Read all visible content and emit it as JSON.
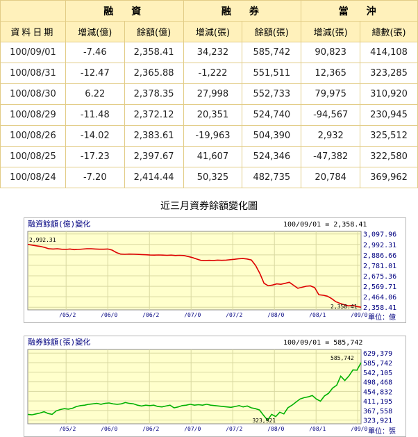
{
  "table": {
    "groups": [
      "",
      "融　資",
      "融　券",
      "當　沖"
    ],
    "headers": [
      "資料日期",
      "增減(億)",
      "餘額(億)",
      "增減(張)",
      "餘額(張)",
      "增減(張)",
      "總數(張)"
    ],
    "rows": [
      [
        "100/09/01",
        "-7.46",
        "2,358.41",
        "34,232",
        "585,742",
        "90,823",
        "414,108"
      ],
      [
        "100/08/31",
        "-12.47",
        "2,365.88",
        "-1,222",
        "551,511",
        "12,365",
        "323,285"
      ],
      [
        "100/08/30",
        "6.22",
        "2,378.35",
        "27,998",
        "552,733",
        "79,975",
        "310,920"
      ],
      [
        "100/08/29",
        "-11.48",
        "2,372.12",
        "20,351",
        "524,740",
        "-94,567",
        "230,945"
      ],
      [
        "100/08/26",
        "-14.02",
        "2,383.61",
        "-19,963",
        "504,390",
        "2,932",
        "325,512"
      ],
      [
        "100/08/25",
        "-17.23",
        "2,397.67",
        "41,607",
        "524,346",
        "-47,382",
        "322,580"
      ],
      [
        "100/08/24",
        "-7.20",
        "2,414.44",
        "50,325",
        "482,735",
        "20,784",
        "369,962"
      ]
    ]
  },
  "caption": "近三月資券餘額變化圖",
  "chart_data": [
    {
      "type": "line",
      "title": "融資餘額(億)變化",
      "current": "100/09/01 = 2,358.41",
      "unit": "單位：億",
      "yticks": [
        "3,097.96",
        "2,992.31",
        "2,886.66",
        "2,781.01",
        "2,675.36",
        "2,569.71",
        "2,464.06",
        "2,358.41"
      ],
      "ylim": [
        2332,
        3124
      ],
      "xticks": [
        "/05/2",
        "/06/0",
        "/06/2",
        "/07/0",
        "/07/2",
        "/08/0",
        "/08/1",
        "/09/0"
      ],
      "annot_max": "2,992.31",
      "annot_min": "2,358.41",
      "color": "#dd0000",
      "values": [
        2992.31,
        2985,
        2978,
        2972,
        2962,
        2948,
        2946,
        2948,
        2944,
        2942,
        2946,
        2940,
        2942,
        2945,
        2948,
        2948,
        2946,
        2944,
        2944,
        2946,
        2935,
        2910,
        2895,
        2893,
        2895,
        2894,
        2892,
        2890,
        2888,
        2885,
        2884,
        2886,
        2884,
        2882,
        2884,
        2880,
        2882,
        2880,
        2870,
        2860,
        2845,
        2832,
        2830,
        2832,
        2830,
        2834,
        2832,
        2834,
        2838,
        2842,
        2848,
        2850,
        2845,
        2835,
        2780,
        2700,
        2600,
        2575,
        2582,
        2594,
        2590,
        2600,
        2610,
        2580,
        2550,
        2560,
        2570,
        2574,
        2556,
        2484,
        2480,
        2470,
        2446,
        2414.44,
        2397.67,
        2383.61,
        2372.12,
        2378.35,
        2365.88,
        2358.41
      ]
    },
    {
      "type": "line",
      "title": "融券餘額(張)變化",
      "current": "100/09/01 = 585,742",
      "unit": "單位：張",
      "yticks": [
        "629,379",
        "585,742",
        "542,105",
        "498,468",
        "454,832",
        "411,195",
        "367,558",
        "323,921"
      ],
      "ylim": [
        307000,
        646000
      ],
      "xticks": [
        "/05/2",
        "/06/0",
        "/06/2",
        "/07/0",
        "/07/2",
        "/08/0",
        "/08/1",
        "/09/0"
      ],
      "annot_max": "585,742",
      "annot_min": "323,921",
      "color": "#00b000",
      "values": [
        350000,
        348000,
        352000,
        356000,
        362000,
        354000,
        350000,
        366000,
        372000,
        376000,
        374000,
        378000,
        386000,
        390000,
        392000,
        396000,
        398000,
        400000,
        396000,
        400000,
        402000,
        398000,
        396000,
        398000,
        404000,
        400000,
        398000,
        392000,
        388000,
        392000,
        390000,
        392000,
        386000,
        384000,
        388000,
        392000,
        380000,
        384000,
        390000,
        392000,
        396000,
        392000,
        394000,
        392000,
        396000,
        392000,
        390000,
        388000,
        386000,
        384000,
        382000,
        386000,
        390000,
        384000,
        388000,
        380000,
        376000,
        370000,
        346000,
        323921,
        350000,
        340000,
        360000,
        352000,
        380000,
        392000,
        406000,
        420000,
        426000,
        430000,
        436000,
        420000,
        410000,
        434000,
        446000,
        470000,
        482735,
        524346,
        504390,
        524740,
        552733,
        551511,
        585742
      ]
    }
  ]
}
